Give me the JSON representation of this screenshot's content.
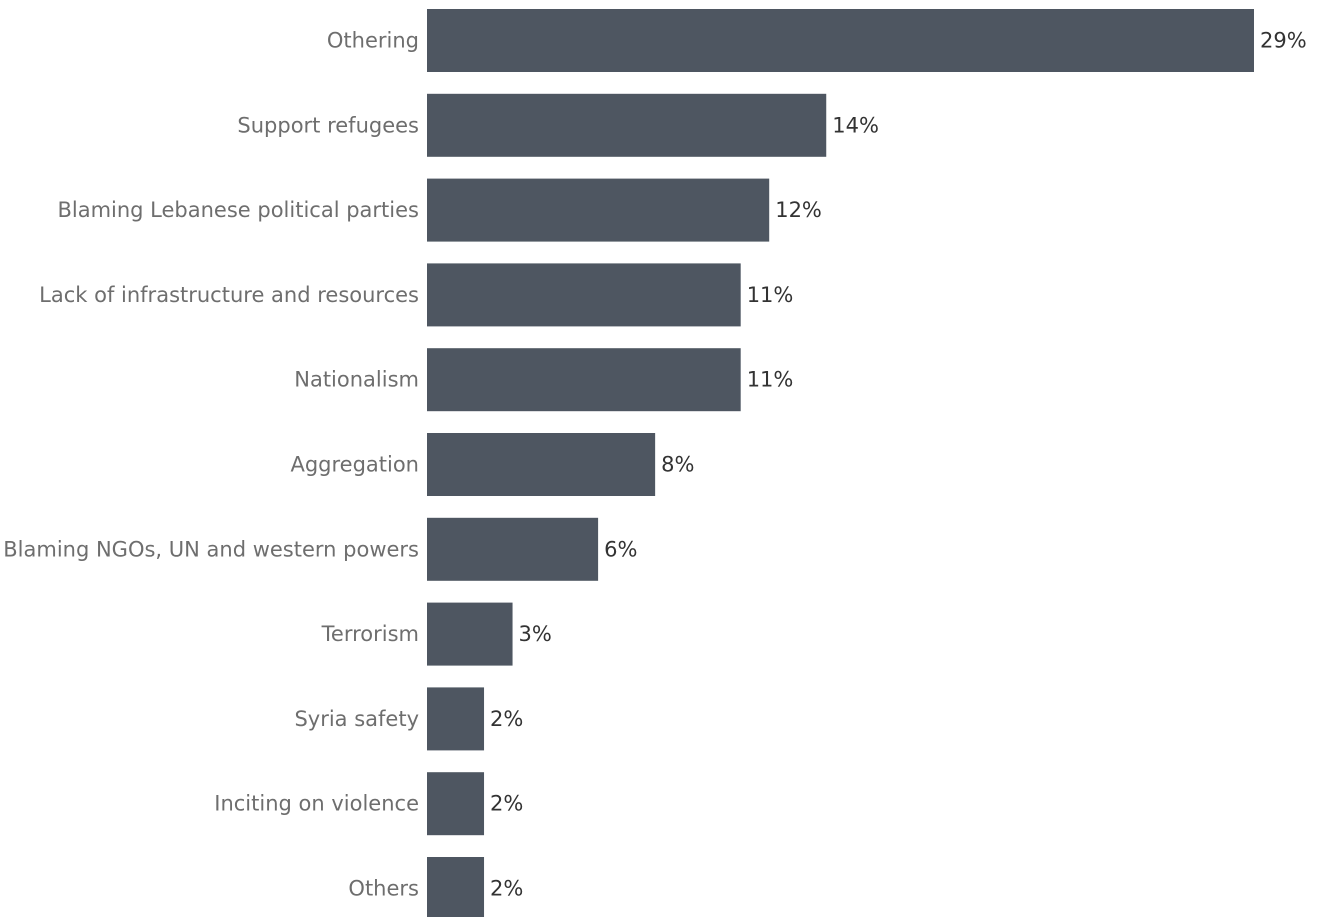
{
  "chart_data": {
    "type": "bar",
    "orientation": "horizontal",
    "title": "",
    "xlabel": "",
    "ylabel": "",
    "categories": [
      "Othering",
      "Support refugees",
      "Blaming Lebanese political parties",
      "Lack of infrastructure and resources",
      "Nationalism",
      "Aggregation",
      "Blaming NGOs, UN and western powers",
      "Terrorism",
      "Syria safety",
      "Inciting on violence",
      "Others"
    ],
    "values": [
      29,
      14,
      12,
      11,
      11,
      8,
      6,
      3,
      2,
      2,
      2
    ],
    "value_labels": [
      "29%",
      "14%",
      "12%",
      "11%",
      "11%",
      "8%",
      "6%",
      "3%",
      "2%",
      "2%",
      "2%"
    ],
    "xlim": [
      0,
      29
    ],
    "grid": false,
    "bar_color": "#4e5661"
  }
}
